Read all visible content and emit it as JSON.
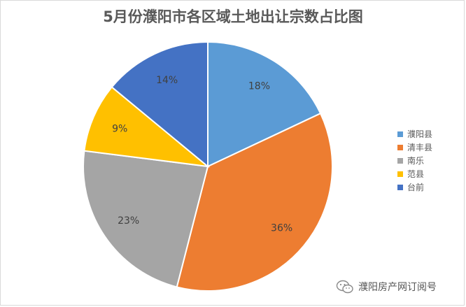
{
  "chart_data": {
    "type": "pie",
    "title": "5月份濮阳市各区域土地出让宗数占比图",
    "categories": [
      "濮阳县",
      "清丰县",
      "南乐",
      "范县",
      "台前"
    ],
    "values": [
      18,
      36,
      23,
      9,
      14
    ],
    "data_labels": [
      "18%",
      "36%",
      "23%",
      "9%",
      "14%"
    ],
    "colors": [
      "#5b9bd5",
      "#ed7d31",
      "#a5a5a5",
      "#ffc000",
      "#4472c4"
    ],
    "legend": "right",
    "start_angle": "12 o'clock",
    "direction": "clockwise"
  },
  "watermark": {
    "text": "濮阳房产网订阅号",
    "icon": "wechat-icon"
  }
}
